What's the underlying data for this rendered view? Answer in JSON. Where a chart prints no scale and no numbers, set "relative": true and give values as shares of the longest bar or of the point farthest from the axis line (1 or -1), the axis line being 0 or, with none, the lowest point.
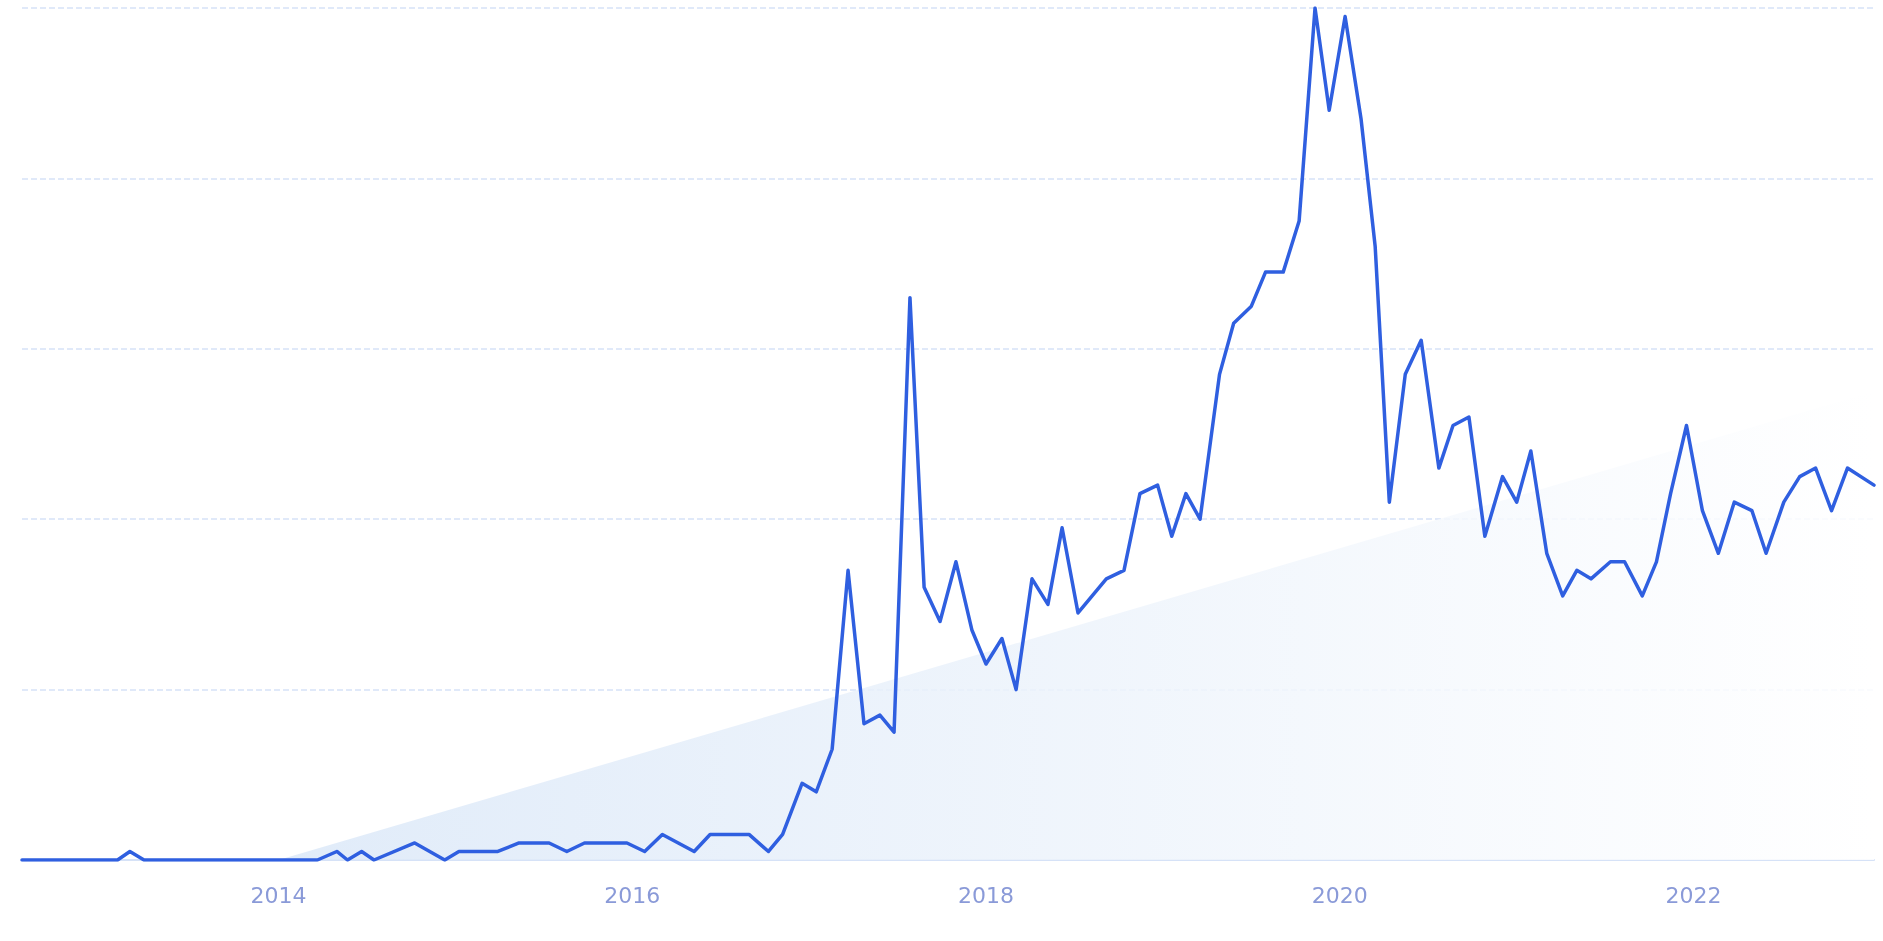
{
  "chart_data": {
    "type": "line",
    "relative": true,
    "grid": "y",
    "line_style": "solid",
    "marker": "none",
    "xlim": [
      2012.55,
      2023.02
    ],
    "xticks": [
      2014,
      2016,
      2018,
      2020,
      2022
    ],
    "series": [
      {
        "type": "area",
        "color": "#dbe8f8",
        "x": [
          2014,
          2023.02
        ],
        "values": [
          0,
          0.55
        ]
      },
      {
        "color": "#2f5fe0",
        "x": [
          2012.55,
          2013.09,
          2013.16,
          2013.24,
          2014.22,
          2014.33,
          2014.39,
          2014.47,
          2014.54,
          2014.77,
          2014.94,
          2015.02,
          2015.24,
          2015.36,
          2015.53,
          2015.63,
          2015.73,
          2015.97,
          2016.07,
          2016.17,
          2016.35,
          2016.44,
          2016.66,
          2016.77,
          2016.85,
          2016.96,
          2017.04,
          2017.13,
          2017.22,
          2017.31,
          2017.4,
          2017.48,
          2017.57,
          2017.65,
          2017.74,
          2017.83,
          2017.92,
          2018,
          2018.09,
          2018.17,
          2018.26,
          2018.35,
          2018.43,
          2018.52,
          2018.6,
          2018.68,
          2018.78,
          2018.87,
          2018.97,
          2019.05,
          2019.13,
          2019.21,
          2019.32,
          2019.4,
          2019.5,
          2019.58,
          2019.68,
          2019.77,
          2019.86,
          2019.94,
          2020.03,
          2020.12,
          2020.2,
          2020.28,
          2020.37,
          2020.46,
          2020.56,
          2020.64,
          2020.73,
          2020.82,
          2020.92,
          2021,
          2021.08,
          2021.17,
          2021.26,
          2021.34,
          2021.42,
          2021.53,
          2021.61,
          2021.71,
          2021.79,
          2021.87,
          2021.96,
          2022.05,
          2022.14,
          2022.23,
          2022.33,
          2022.41,
          2022.51,
          2022.6,
          2022.69,
          2022.78,
          2022.87,
          2023.02
        ],
        "values": [
          0,
          0,
          0.01,
          0,
          0,
          0.01,
          0,
          0.01,
          0,
          0.02,
          0,
          0.01,
          0.01,
          0.02,
          0.02,
          0.01,
          0.02,
          0.02,
          0.01,
          0.03,
          0.01,
          0.03,
          0.03,
          0.01,
          0.03,
          0.09,
          0.08,
          0.13,
          0.34,
          0.16,
          0.17,
          0.15,
          0.66,
          0.32,
          0.28,
          0.35,
          0.27,
          0.23,
          0.26,
          0.2,
          0.33,
          0.3,
          0.39,
          0.29,
          0.31,
          0.33,
          0.34,
          0.43,
          0.44,
          0.38,
          0.43,
          0.4,
          0.57,
          0.63,
          0.65,
          0.69,
          0.69,
          0.75,
          1,
          0.88,
          0.99,
          0.87,
          0.72,
          0.42,
          0.57,
          0.61,
          0.46,
          0.51,
          0.52,
          0.38,
          0.45,
          0.42,
          0.48,
          0.36,
          0.31,
          0.34,
          0.33,
          0.35,
          0.35,
          0.31,
          0.35,
          0.43,
          0.51,
          0.41,
          0.36,
          0.42,
          0.41,
          0.36,
          0.42,
          0.45,
          0.46,
          0.41,
          0.46,
          0.44
        ]
      }
    ]
  }
}
